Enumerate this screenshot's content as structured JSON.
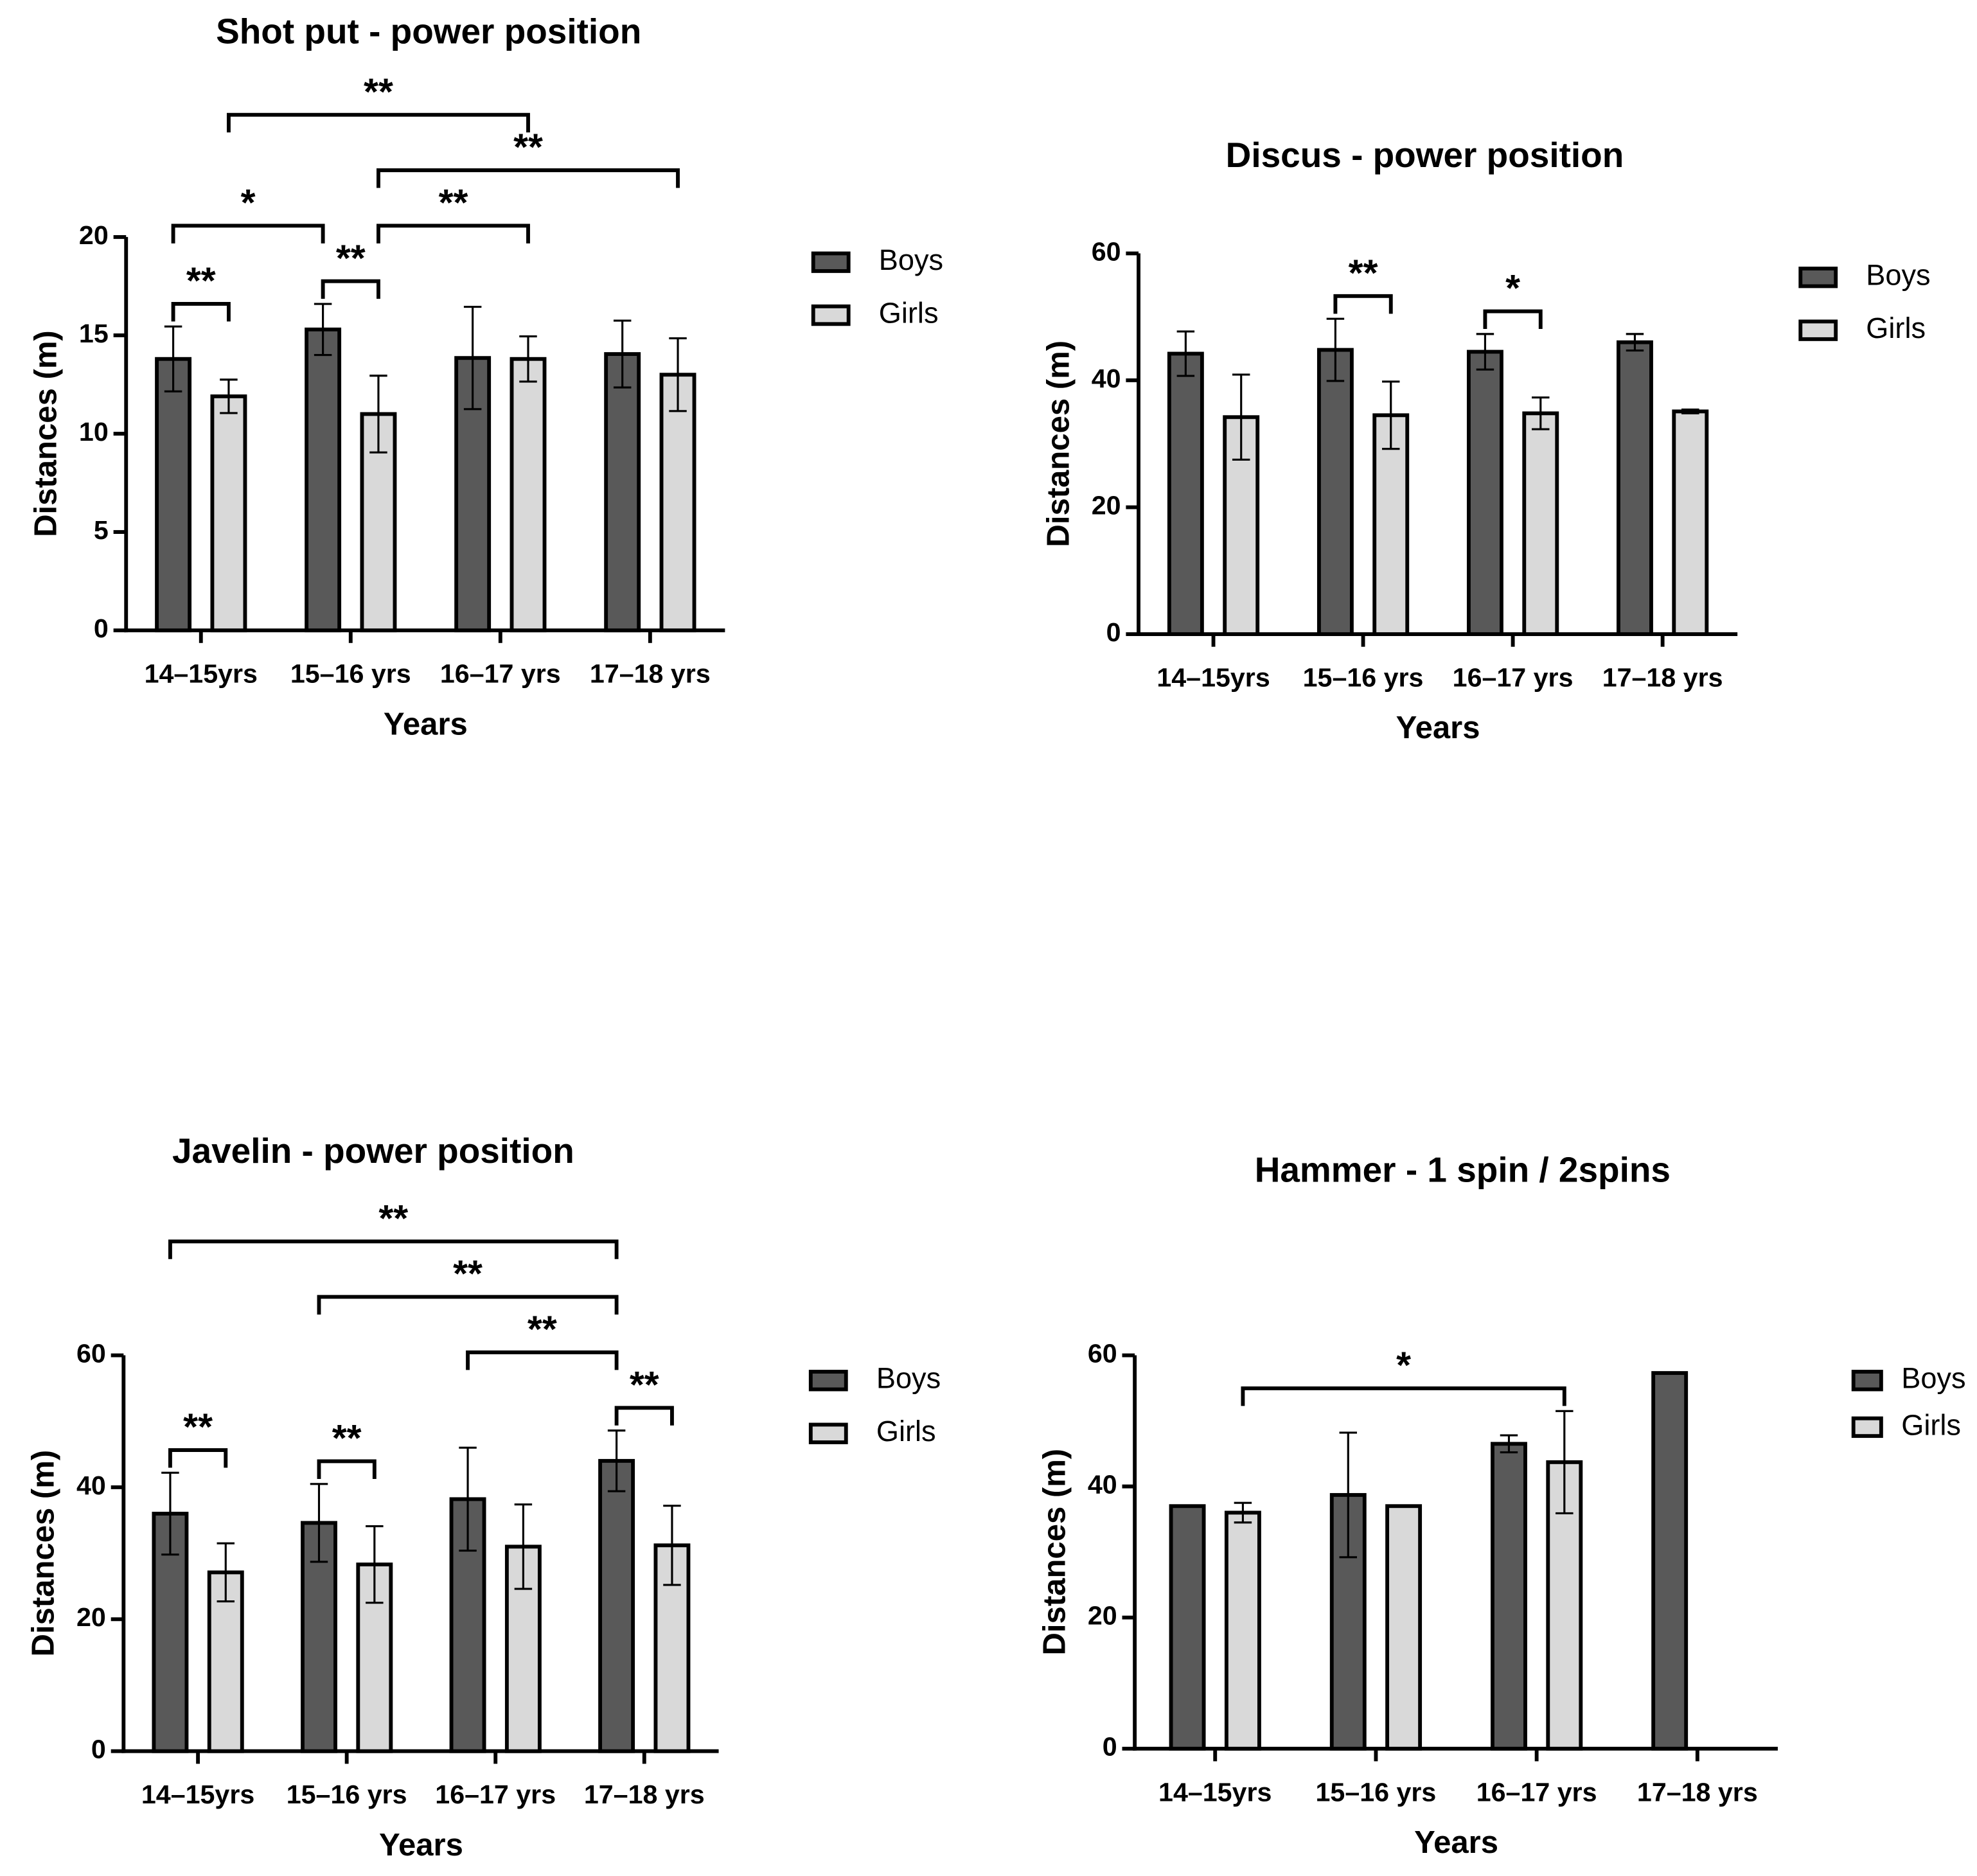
{
  "chart_data": [
    {
      "type": "bar",
      "title": "Shot put - power position",
      "xlabel": "Years",
      "ylabel": "Distances (m)",
      "categories": [
        "14–15yrs",
        "15–16 yrs",
        "16–17 yrs",
        "17–18 yrs"
      ],
      "series": [
        {
          "name": "Boys",
          "color": "#595959",
          "values": [
            13.8,
            15.3,
            13.85,
            14.05
          ],
          "errors": [
            1.65,
            1.3,
            2.6,
            1.7
          ]
        },
        {
          "name": "Girls",
          "color": "#d9d9d9",
          "values": [
            11.9,
            11.0,
            13.8,
            13.0
          ],
          "errors": [
            0.85,
            1.95,
            1.15,
            1.85
          ]
        }
      ],
      "ylim": [
        0,
        20
      ],
      "yticks": [
        0,
        5,
        10,
        15,
        20
      ],
      "annotations": [
        {
          "text": "**",
          "from": [
            0,
            0
          ],
          "to": [
            0,
            1
          ]
        },
        {
          "text": "**",
          "from": [
            1,
            0
          ],
          "to": [
            1,
            1
          ]
        },
        {
          "text": "*",
          "from": [
            0,
            0
          ],
          "to": [
            1,
            0
          ]
        },
        {
          "text": "**",
          "from": [
            1,
            1
          ],
          "to": [
            2,
            1
          ]
        },
        {
          "text": "**",
          "from": [
            1,
            1
          ],
          "to": [
            3,
            1
          ]
        },
        {
          "text": "**",
          "from": [
            0,
            1
          ],
          "to": [
            2,
            1
          ]
        }
      ]
    },
    {
      "type": "bar",
      "title": "Discus - power position",
      "xlabel": "Years",
      "ylabel": "Distances (m)",
      "categories": [
        "14–15yrs",
        "15–16 yrs",
        "16–17 yrs",
        "17–18 yrs"
      ],
      "series": [
        {
          "name": "Boys",
          "color": "#595959",
          "values": [
            44.2,
            44.8,
            44.5,
            46.0
          ],
          "errors": [
            3.5,
            4.9,
            2.8,
            1.3
          ]
        },
        {
          "name": "Girls",
          "color": "#d9d9d9",
          "values": [
            34.2,
            34.5,
            34.8,
            35.1
          ],
          "errors": [
            6.7,
            5.3,
            2.5,
            0.3
          ]
        }
      ],
      "ylim": [
        0,
        60
      ],
      "yticks": [
        0,
        20,
        40,
        60
      ],
      "annotations": [
        {
          "text": "**",
          "from": [
            1,
            0
          ],
          "to": [
            1,
            1
          ]
        },
        {
          "text": "*",
          "from": [
            2,
            0
          ],
          "to": [
            2,
            1
          ]
        }
      ]
    },
    {
      "type": "bar",
      "title": "Javelin - power position",
      "xlabel": "Years",
      "ylabel": "Distances (m)",
      "categories": [
        "14–15yrs",
        "15–16 yrs",
        "16–17 yrs",
        "17–18 yrs"
      ],
      "series": [
        {
          "name": "Boys",
          "color": "#595959",
          "values": [
            36.0,
            34.6,
            38.2,
            44.0
          ],
          "errors": [
            6.2,
            5.9,
            7.8,
            4.6
          ]
        },
        {
          "name": "Girls",
          "color": "#d9d9d9",
          "values": [
            27.1,
            28.3,
            31.0,
            31.2
          ],
          "errors": [
            4.4,
            5.8,
            6.4,
            6.0
          ]
        }
      ],
      "ylim": [
        0,
        60
      ],
      "yticks": [
        0,
        20,
        40,
        60
      ],
      "annotations": [
        {
          "text": "**",
          "from": [
            0,
            0
          ],
          "to": [
            0,
            1
          ]
        },
        {
          "text": "**",
          "from": [
            1,
            0
          ],
          "to": [
            1,
            1
          ]
        },
        {
          "text": "**",
          "from": [
            3,
            0
          ],
          "to": [
            3,
            1
          ]
        },
        {
          "text": "**",
          "from": [
            2,
            0
          ],
          "to": [
            3,
            0
          ]
        },
        {
          "text": "**",
          "from": [
            1,
            0
          ],
          "to": [
            3,
            0
          ]
        },
        {
          "text": "**",
          "from": [
            0,
            0
          ],
          "to": [
            3,
            0
          ]
        }
      ]
    },
    {
      "type": "bar",
      "title": "Hammer - 1 spin / 2spins",
      "xlabel": "Years",
      "ylabel": "Distances (m)",
      "categories": [
        "14–15yrs",
        "15–16 yrs",
        "16–17 yrs",
        "17–18 yrs"
      ],
      "series": [
        {
          "name": "Boys",
          "color": "#595959",
          "values": [
            37.0,
            38.7,
            46.5,
            57.3
          ],
          "errors": [
            null,
            9.5,
            1.3,
            null
          ]
        },
        {
          "name": "Girls",
          "color": "#d9d9d9",
          "values": [
            36.0,
            37.0,
            43.7,
            null
          ],
          "errors": [
            1.5,
            null,
            7.8,
            null
          ]
        }
      ],
      "ylim": [
        0,
        60
      ],
      "yticks": [
        0,
        20,
        40,
        60
      ],
      "annotations": [
        {
          "text": "*",
          "from": [
            0,
            1
          ],
          "to": [
            2,
            1
          ]
        }
      ]
    }
  ]
}
